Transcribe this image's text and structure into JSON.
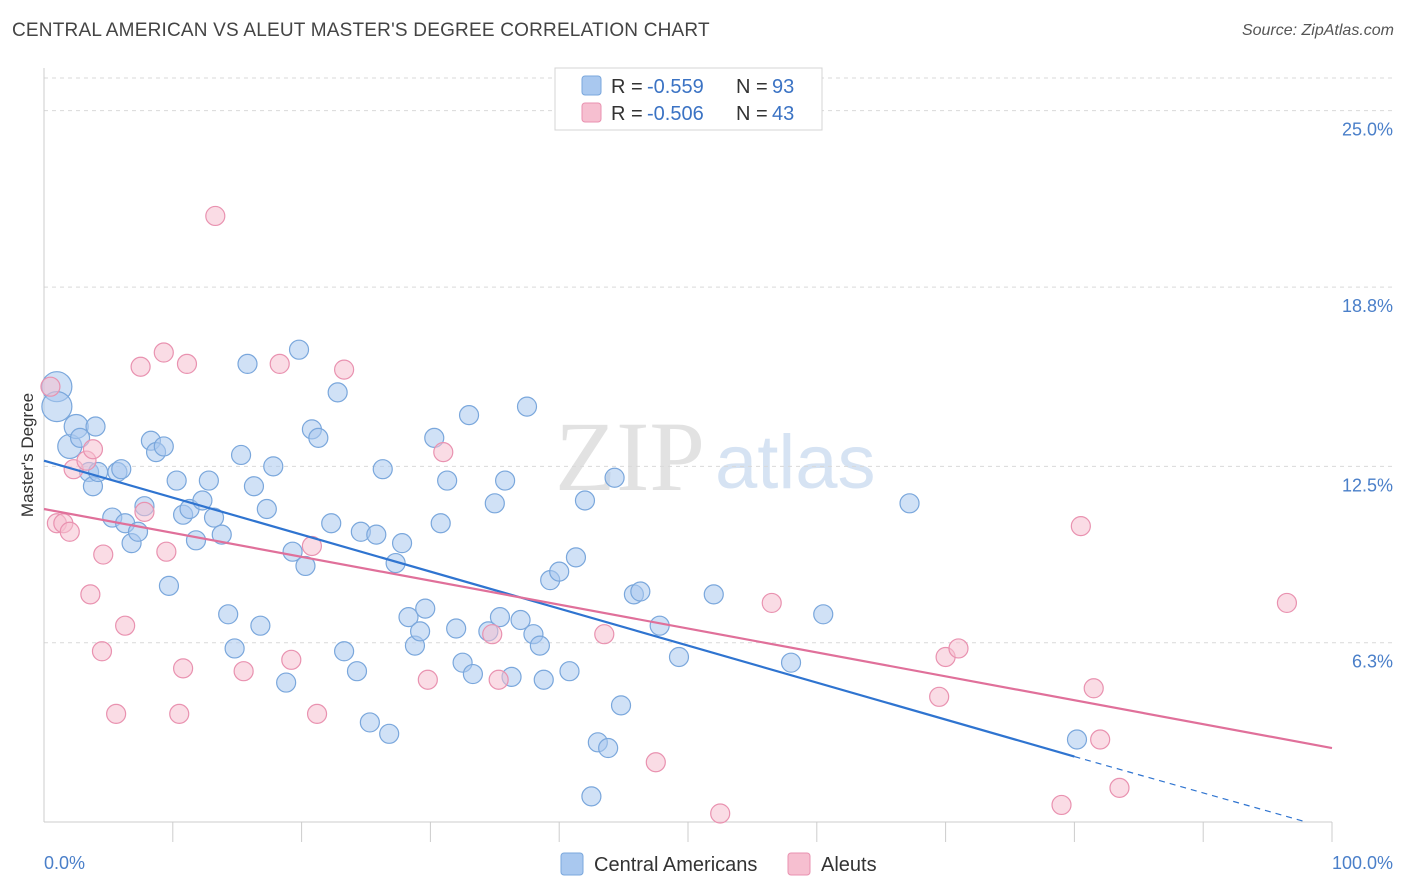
{
  "title": "CENTRAL AMERICAN VS ALEUT MASTER'S DEGREE CORRELATION CHART",
  "source": "Source: ZipAtlas.com",
  "watermark": {
    "zip": "ZIP",
    "atlas": "atlas"
  },
  "colors": {
    "blue_fill": "#a9c8ef",
    "blue_stroke": "#7aa7dc",
    "blue_line": "#2f74d0",
    "pink_fill": "#f6bfd0",
    "pink_stroke": "#e992b0",
    "pink_line": "#e0709a",
    "grid": "#d9d9d9",
    "tick_text": "#4a7fc9"
  },
  "legend": {
    "rows": [
      {
        "r_label": "R = ",
        "r_value": "-0.559",
        "n_label": "N = ",
        "n_value": "93",
        "color": "blue"
      },
      {
        "r_label": "R = ",
        "r_value": "-0.506",
        "n_label": "N = ",
        "n_value": "43",
        "color": "pink"
      }
    ]
  },
  "bottom_legend": [
    {
      "label": "Central Americans",
      "color": "blue"
    },
    {
      "label": "Aleuts",
      "color": "pink"
    }
  ],
  "chart_data": {
    "type": "scatter",
    "title": "CENTRAL AMERICAN VS ALEUT MASTER'S DEGREE CORRELATION CHART",
    "xlabel": "",
    "ylabel": "Master's Degree",
    "xlim": [
      0,
      100
    ],
    "ylim": [
      0,
      26.5
    ],
    "x_tick_labels": [
      {
        "value": 0,
        "label": "0.0%"
      },
      {
        "value": 100,
        "label": "100.0%"
      }
    ],
    "y_tick_labels": [
      {
        "value": 6.3,
        "label": "6.3%"
      },
      {
        "value": 12.5,
        "label": "12.5%"
      },
      {
        "value": 18.8,
        "label": "18.8%"
      },
      {
        "value": 25.0,
        "label": "25.0%"
      }
    ],
    "series": [
      {
        "name": "Central Americans",
        "color": "blue",
        "trend": {
          "x0": 0,
          "y0": 12.7,
          "x1": 80,
          "y1": 2.3,
          "dash_to_x": 98,
          "dash_to_y": 0
        },
        "points": [
          [
            1,
            15.3,
            3
          ],
          [
            1,
            14.6,
            3
          ],
          [
            2,
            13.2,
            2
          ],
          [
            2.5,
            13.9,
            2
          ],
          [
            2.8,
            13.5,
            1
          ],
          [
            3.5,
            12.3,
            1
          ],
          [
            3.8,
            11.8,
            1
          ],
          [
            4,
            13.9,
            1
          ],
          [
            4.2,
            12.3,
            1
          ],
          [
            5.3,
            10.7,
            1
          ],
          [
            5.7,
            12.3,
            1
          ],
          [
            6,
            12.4,
            1
          ],
          [
            6.3,
            10.5,
            1
          ],
          [
            6.8,
            9.8,
            1
          ],
          [
            7.3,
            10.2,
            1
          ],
          [
            7.8,
            11.1,
            1
          ],
          [
            8.3,
            13.4,
            1
          ],
          [
            8.7,
            13,
            1
          ],
          [
            9.3,
            13.2,
            1
          ],
          [
            9.7,
            8.3,
            1
          ],
          [
            10.3,
            12,
            1
          ],
          [
            10.8,
            10.8,
            1
          ],
          [
            11.3,
            11,
            1
          ],
          [
            11.8,
            9.9,
            1
          ],
          [
            12.3,
            11.3,
            1
          ],
          [
            12.8,
            12,
            1
          ],
          [
            13.2,
            10.7,
            1
          ],
          [
            13.8,
            10.1,
            1
          ],
          [
            14.3,
            7.3,
            1
          ],
          [
            14.8,
            6.1,
            1
          ],
          [
            15.3,
            12.9,
            1
          ],
          [
            15.8,
            16.1,
            1
          ],
          [
            16.3,
            11.8,
            1
          ],
          [
            16.8,
            6.9,
            1
          ],
          [
            17.3,
            11,
            1
          ],
          [
            17.8,
            12.5,
            1
          ],
          [
            18.8,
            4.9,
            1
          ],
          [
            19.3,
            9.5,
            1
          ],
          [
            19.8,
            16.6,
            1
          ],
          [
            20.3,
            9,
            1
          ],
          [
            20.8,
            13.8,
            1
          ],
          [
            21.3,
            13.5,
            1
          ],
          [
            22.3,
            10.5,
            1
          ],
          [
            22.8,
            15.1,
            1
          ],
          [
            23.3,
            6,
            1
          ],
          [
            24.3,
            5.3,
            1
          ],
          [
            24.6,
            10.2,
            1
          ],
          [
            25.3,
            3.5,
            1
          ],
          [
            25.8,
            10.1,
            1
          ],
          [
            26.3,
            12.4,
            1
          ],
          [
            26.8,
            3.1,
            1
          ],
          [
            27.3,
            9.1,
            1
          ],
          [
            27.8,
            9.8,
            1
          ],
          [
            28.3,
            7.2,
            1
          ],
          [
            28.8,
            6.2,
            1
          ],
          [
            29.2,
            6.7,
            1
          ],
          [
            29.6,
            7.5,
            1
          ],
          [
            30.3,
            13.5,
            1
          ],
          [
            30.8,
            10.5,
            1
          ],
          [
            31.3,
            12,
            1
          ],
          [
            32,
            6.8,
            1
          ],
          [
            32.5,
            5.6,
            1
          ],
          [
            33,
            14.3,
            1
          ],
          [
            33.3,
            5.2,
            1
          ],
          [
            34.5,
            6.7,
            1
          ],
          [
            35,
            11.2,
            1
          ],
          [
            35.4,
            7.2,
            1
          ],
          [
            35.8,
            12,
            1
          ],
          [
            36.3,
            5.1,
            1
          ],
          [
            37,
            7.1,
            1
          ],
          [
            37.5,
            14.6,
            1
          ],
          [
            38,
            6.6,
            1
          ],
          [
            38.5,
            6.2,
            1
          ],
          [
            38.8,
            5,
            1
          ],
          [
            39.3,
            8.5,
            1
          ],
          [
            40,
            8.8,
            1
          ],
          [
            40.8,
            5.3,
            1
          ],
          [
            41.3,
            9.3,
            1
          ],
          [
            42,
            11.3,
            1
          ],
          [
            42.5,
            0.9,
            1
          ],
          [
            43,
            2.8,
            1
          ],
          [
            43.8,
            2.6,
            1
          ],
          [
            44.3,
            12.1,
            1
          ],
          [
            44.8,
            4.1,
            1
          ],
          [
            45.8,
            8,
            1
          ],
          [
            46.3,
            8.1,
            1
          ],
          [
            47.8,
            6.9,
            1
          ],
          [
            49.3,
            5.8,
            1
          ],
          [
            52,
            8,
            1
          ],
          [
            58,
            5.6,
            1
          ],
          [
            60.5,
            7.3,
            1
          ],
          [
            67.2,
            11.2,
            1
          ],
          [
            80.2,
            2.9,
            1
          ]
        ]
      },
      {
        "name": "Aleuts",
        "color": "pink",
        "trend": {
          "x0": 0,
          "y0": 11,
          "x1": 100,
          "y1": 2.6
        },
        "points": [
          [
            0.5,
            15.3,
            1
          ],
          [
            1,
            10.5,
            1
          ],
          [
            1.5,
            10.5,
            1
          ],
          [
            2,
            10.2,
            1
          ],
          [
            2.3,
            12.4,
            1
          ],
          [
            3.3,
            12.7,
            1
          ],
          [
            3.6,
            8,
            1
          ],
          [
            3.8,
            13.1,
            1
          ],
          [
            4.5,
            6,
            1
          ],
          [
            4.6,
            9.4,
            1
          ],
          [
            5.6,
            3.8,
            1
          ],
          [
            6.3,
            6.9,
            1
          ],
          [
            7.5,
            16,
            1
          ],
          [
            7.8,
            10.9,
            1
          ],
          [
            9.3,
            16.5,
            1
          ],
          [
            9.5,
            9.5,
            1
          ],
          [
            10.5,
            3.8,
            1
          ],
          [
            10.8,
            5.4,
            1
          ],
          [
            11.1,
            16.1,
            1
          ],
          [
            13.3,
            21.3,
            1
          ],
          [
            15.5,
            5.3,
            1
          ],
          [
            18.3,
            16.1,
            1
          ],
          [
            19.2,
            5.7,
            1
          ],
          [
            20.8,
            9.7,
            1
          ],
          [
            21.2,
            3.8,
            1
          ],
          [
            23.3,
            15.9,
            1
          ],
          [
            29.8,
            5,
            1
          ],
          [
            31,
            13,
            1
          ],
          [
            34.8,
            6.6,
            1
          ],
          [
            35.3,
            5,
            1
          ],
          [
            43.5,
            6.6,
            1
          ],
          [
            47.5,
            2.1,
            1
          ],
          [
            52.5,
            0.3,
            1
          ],
          [
            56.5,
            7.7,
            1
          ],
          [
            69.5,
            4.4,
            1
          ],
          [
            70,
            5.8,
            1
          ],
          [
            71,
            6.1,
            1
          ],
          [
            79,
            0.6,
            1
          ],
          [
            80.5,
            10.4,
            1
          ],
          [
            81.5,
            4.7,
            1
          ],
          [
            82,
            2.9,
            1
          ],
          [
            83.5,
            1.2,
            1
          ],
          [
            96.5,
            7.7,
            1
          ]
        ]
      }
    ]
  }
}
